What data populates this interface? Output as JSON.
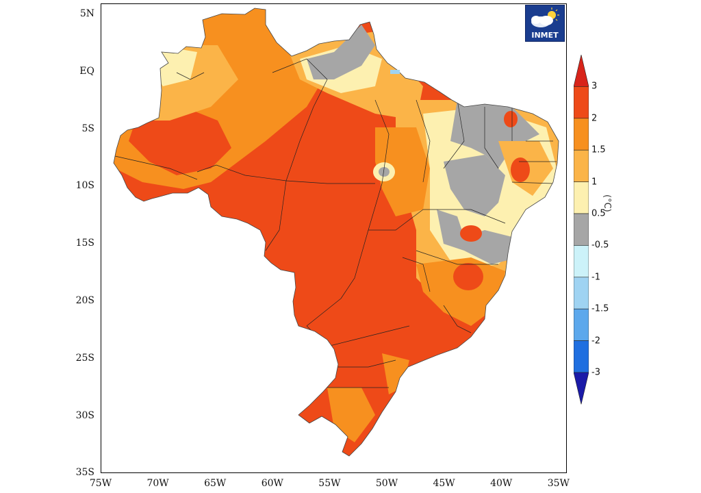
{
  "logo": {
    "text": "INMET",
    "icon": "sun-cloud-icon"
  },
  "axes": {
    "latitude_ticks": [
      "5N",
      "EQ",
      "5S",
      "10S",
      "15S",
      "20S",
      "25S",
      "30S",
      "35S"
    ],
    "longitude_ticks": [
      "75W",
      "70W",
      "65W",
      "60W",
      "55W",
      "50W",
      "45W",
      "40W",
      "35W"
    ],
    "lat_range": [
      5,
      -35
    ],
    "lon_range": [
      -75,
      -34.5
    ]
  },
  "legend": {
    "unit": "(°C)",
    "labels": [
      "3",
      "2",
      "1.5",
      "1",
      "0.5",
      "-0.5",
      "-1",
      "-1.5",
      "-2",
      "-3"
    ],
    "colors": {
      "above_3": "#d8241a",
      "2_to_3": "#ee4a18",
      "1.5_to_2": "#f7901f",
      "1_to_1.5": "#fbb448",
      "0.5_to_1": "#fdf0b0",
      "-0.5_to_0.5": "#a6a6a6",
      "-1_to_-0.5": "#ccf2f9",
      "-1.5_to_-1": "#9fd3f2",
      "-2_to_-1.5": "#5ca8ec",
      "-3_to_-2": "#1f6fe0",
      "below_-3": "#1a1aa8"
    }
  },
  "colors": {
    "background": "#ffffff",
    "border": "#000000",
    "logo_bg": "#1a3d8f"
  }
}
